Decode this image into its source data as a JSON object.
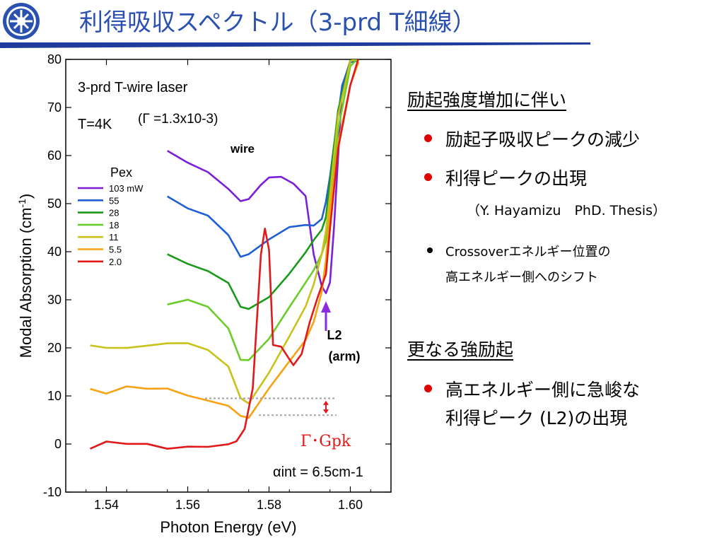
{
  "slide": {
    "title": "利得吸収スペクトル（3-prd T細線）",
    "logo_icon": "university-seal-icon",
    "accent_color": "#2a50b0"
  },
  "right_panel": {
    "heading1": "励起強度増加に伴い",
    "bullet1": "励起子吸収ピークの減少",
    "bullet2": "利得ピークの出現",
    "citation": "（Y. Hayamizu　PhD. Thesis）",
    "small_bullet_line1": "Crossoverエネルギー位置の",
    "small_bullet_line2": "高エネルギー側へのシフト",
    "heading2": "更なる強励起",
    "bullet3_line1": "高エネルギー側に急峻な",
    "bullet3_line2": "利得ピーク (L2)の出現"
  },
  "chart_data": {
    "type": "line",
    "xlabel": "Photon Energy (eV)",
    "ylabel": "Modal Absorption",
    "ylabel_unit": "(cm-1)",
    "xlim": [
      1.53,
      1.61
    ],
    "ylim": [
      -10,
      80
    ],
    "x_ticks": [
      "1.54",
      "1.56",
      "1.58",
      "1.60"
    ],
    "y_ticks": [
      "-10",
      "0",
      "10",
      "20",
      "30",
      "40",
      "50",
      "60",
      "70",
      "80"
    ],
    "annotations": {
      "sample": "3-prd T-wire laser",
      "temperature": "T=4K",
      "gamma": "(Γ =1.3x10-3)",
      "wire": "wire",
      "legend_title": "Pex",
      "l2_line1": "L2",
      "l2_line2": "(arm)",
      "gamma_gpk": "Γ･Gpk",
      "alpha_int": "αint = 6.5cm-1"
    },
    "series": [
      {
        "name": "103 mW",
        "color": "#7b1fd6",
        "x": [
          1.555,
          1.56,
          1.565,
          1.57,
          1.573,
          1.575,
          1.578,
          1.58,
          1.583,
          1.586,
          1.589,
          1.591,
          1.593,
          1.594,
          1.595,
          1.596,
          1.597,
          1.598,
          1.6,
          1.602
        ],
        "y": [
          61,
          58,
          56,
          53,
          51,
          51.5,
          54,
          55,
          55,
          54,
          52,
          40,
          33,
          31,
          33,
          45,
          60,
          75,
          80,
          80
        ]
      },
      {
        "name": "55",
        "color": "#1f5fd6",
        "x": [
          1.555,
          1.56,
          1.565,
          1.57,
          1.573,
          1.575,
          1.58,
          1.585,
          1.589,
          1.591,
          1.593,
          1.594,
          1.595,
          1.596,
          1.598,
          1.6,
          1.602
        ],
        "y": [
          51,
          49,
          48,
          44,
          39,
          39,
          42,
          45,
          46,
          46,
          47,
          50,
          55,
          62,
          75,
          80,
          80
        ]
      },
      {
        "name": "28",
        "color": "#1a9a1a",
        "x": [
          1.555,
          1.56,
          1.565,
          1.57,
          1.573,
          1.575,
          1.58,
          1.585,
          1.589,
          1.591,
          1.593,
          1.594,
          1.595,
          1.597,
          1.6,
          1.602
        ],
        "y": [
          40,
          38,
          36,
          33,
          28,
          28,
          31,
          36,
          40,
          42,
          44,
          47,
          55,
          70,
          80,
          80
        ]
      },
      {
        "name": "18",
        "color": "#6ccc2a",
        "x": [
          1.555,
          1.56,
          1.565,
          1.57,
          1.573,
          1.575,
          1.58,
          1.585,
          1.589,
          1.591,
          1.593,
          1.594,
          1.595,
          1.597,
          1.6,
          1.602
        ],
        "y": [
          29,
          29.5,
          28,
          24,
          18,
          18,
          22,
          28,
          33,
          36,
          40,
          43,
          50,
          65,
          78,
          80
        ]
      },
      {
        "name": "11",
        "color": "#c9c21a",
        "x": [
          1.536,
          1.54,
          1.545,
          1.55,
          1.555,
          1.56,
          1.565,
          1.57,
          1.573,
          1.575,
          1.58,
          1.585,
          1.589,
          1.591,
          1.593,
          1.594,
          1.595,
          1.597,
          1.6,
          1.602
        ],
        "y": [
          20,
          20,
          20.5,
          21,
          21,
          20.5,
          19,
          16,
          10,
          9,
          15,
          22,
          28,
          33,
          40,
          45,
          52,
          68,
          79,
          80
        ]
      },
      {
        "name": "5.5",
        "color": "#f5a312",
        "x": [
          1.536,
          1.54,
          1.545,
          1.55,
          1.555,
          1.56,
          1.565,
          1.57,
          1.573,
          1.575,
          1.58,
          1.585,
          1.589,
          1.591,
          1.593,
          1.594,
          1.595,
          1.597,
          1.6,
          1.602
        ],
        "y": [
          12,
          11,
          12,
          11,
          11,
          10,
          9.5,
          8.5,
          6,
          5,
          11,
          17,
          22,
          26,
          32,
          38,
          48,
          62,
          75,
          80
        ]
      },
      {
        "name": "2.0",
        "color": "#e01a1a",
        "x": [
          1.536,
          1.54,
          1.545,
          1.55,
          1.555,
          1.56,
          1.565,
          1.57,
          1.572,
          1.574,
          1.576,
          1.578,
          1.579,
          1.58,
          1.581,
          1.583,
          1.585,
          1.586,
          1.588,
          1.59,
          1.592,
          1.594,
          1.595,
          1.597,
          1.6,
          1.602
        ],
        "y": [
          -1,
          0,
          -0.5,
          0,
          -0.5,
          0,
          -0.5,
          -0.5,
          0,
          3,
          12,
          40,
          45,
          40,
          20,
          20,
          18,
          17,
          19,
          25,
          30,
          35,
          45,
          62,
          75,
          80
        ]
      }
    ]
  }
}
